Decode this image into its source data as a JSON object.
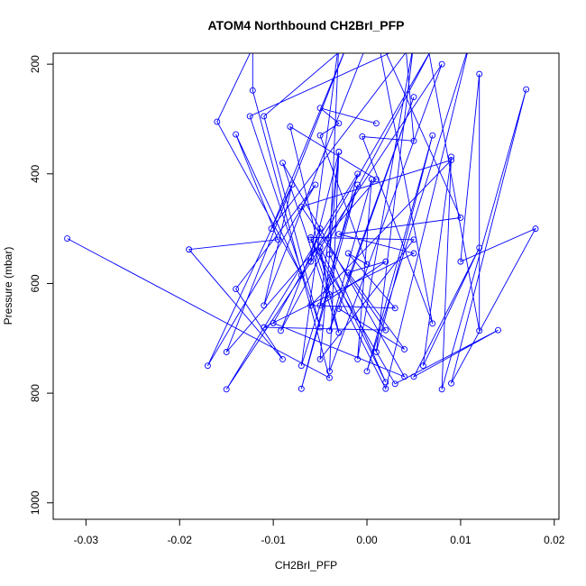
{
  "chart_data": {
    "type": "line",
    "title": "ATOM4 Northbound CH2BrI_PFP",
    "xlabel": "CH2BrI_PFP",
    "ylabel": "Pressure (mbar)",
    "xlim": [
      -0.0335,
      0.0205
    ],
    "ylim": [
      1030,
      180
    ],
    "y_reversed": true,
    "grid": false,
    "x_ticks": [
      -0.03,
      -0.02,
      -0.01,
      0.0,
      0.01,
      0.02
    ],
    "x_tick_labels": [
      "-0.03",
      "-0.02",
      "-0.01",
      "0.00",
      "0.01",
      "0.02"
    ],
    "y_ticks": [
      200,
      400,
      600,
      800,
      1000
    ],
    "y_tick_labels": [
      "200",
      "400",
      "600",
      "800",
      "1000"
    ],
    "series_color": "#0000ff",
    "series": [
      {
        "points": [
          [
            -0.032,
            518
          ],
          [
            -0.004,
            772
          ],
          [
            -0.0122,
            248
          ],
          [
            -0.0122,
            170
          ],
          [
            -0.016,
            305
          ],
          [
            -0.007,
            585
          ],
          [
            -0.014,
            328
          ],
          [
            -0.0095,
            520
          ],
          [
            -0.019,
            538
          ],
          [
            -0.009,
            738
          ],
          [
            -0.014,
            610
          ],
          [
            -0.0055,
            420
          ],
          [
            -0.017,
            750
          ],
          [
            -0.008,
            420
          ],
          [
            -0.011,
            640
          ],
          [
            0.001,
            120
          ],
          [
            -0.011,
            295
          ],
          [
            -0.005,
            680
          ],
          [
            -0.0125,
            295
          ],
          [
            0.005,
            160
          ],
          [
            -0.0102,
            500
          ],
          [
            -0.002,
            160
          ],
          [
            -0.015,
            725
          ],
          [
            0.001,
            410
          ],
          [
            -0.0082,
            314
          ],
          [
            -0.003,
            690
          ],
          [
            -0.009,
            380
          ],
          [
            0.004,
            770
          ],
          [
            -0.01,
            672
          ],
          [
            0.007,
            170
          ],
          [
            -0.0092,
            686
          ],
          [
            -0.005,
            500
          ],
          [
            -0.007,
            750
          ],
          [
            -0.001,
            420
          ],
          [
            -0.007,
            792
          ],
          [
            -0.001,
            400
          ],
          [
            -0.015,
            793
          ],
          [
            0.008,
            200
          ],
          [
            -0.004,
            760
          ],
          [
            -0.003,
            360
          ],
          [
            -0.005,
            738
          ],
          [
            0.005,
            520
          ],
          [
            -0.006,
            516
          ],
          [
            -0.004,
            620
          ],
          [
            -0.005,
            534
          ],
          [
            0.002,
            780
          ],
          [
            -0.004,
            547
          ],
          [
            -0.003,
            160
          ],
          [
            -0.006,
            560
          ],
          [
            -0.003,
            360
          ],
          [
            -0.005,
            640
          ],
          [
            0.002,
            560
          ],
          [
            -0.002,
            580
          ],
          [
            0.004,
            720
          ],
          [
            -0.003,
            646
          ],
          [
            0.005,
            260
          ],
          [
            -0.004,
            686
          ],
          [
            0.0005,
            410
          ],
          [
            -0.001,
            738
          ],
          [
            0.005,
            160
          ],
          [
            0.001,
            725
          ],
          [
            0.007,
            330
          ],
          [
            0.0,
            760
          ],
          [
            0.011,
            160
          ],
          [
            0.002,
            792
          ],
          [
            -0.006,
            520
          ],
          [
            0.003,
            783
          ],
          [
            0.014,
            685
          ],
          [
            0.005,
            770
          ],
          [
            0.012,
            535
          ],
          [
            0.006,
            750
          ],
          [
            0.009,
            369
          ],
          [
            0.008,
            793
          ],
          [
            0.017,
            246
          ],
          [
            0.009,
            782
          ],
          [
            0.018,
            500
          ],
          [
            0.01,
            560
          ],
          [
            0.012,
            218
          ],
          [
            0.012,
            686
          ],
          [
            0.006,
            120
          ],
          [
            0.004,
            140
          ],
          [
            0.005,
            340
          ],
          [
            -0.0005,
            332
          ],
          [
            0.007,
            673
          ],
          [
            0.001,
            140
          ],
          [
            0.01,
            480
          ],
          [
            -0.003,
            510
          ],
          [
            0.005,
            545
          ],
          [
            -0.011,
            680
          ],
          [
            0.002,
            685
          ],
          [
            -0.007,
            460
          ],
          [
            0.009,
            375
          ],
          [
            -0.006,
            640
          ],
          [
            0.003,
            645
          ],
          [
            -0.002,
            545
          ],
          [
            0.0,
            565
          ],
          [
            -0.005,
            330
          ],
          [
            -0.003,
            308
          ],
          [
            -0.005,
            280
          ],
          [
            0.001,
            308
          ]
        ]
      }
    ]
  }
}
